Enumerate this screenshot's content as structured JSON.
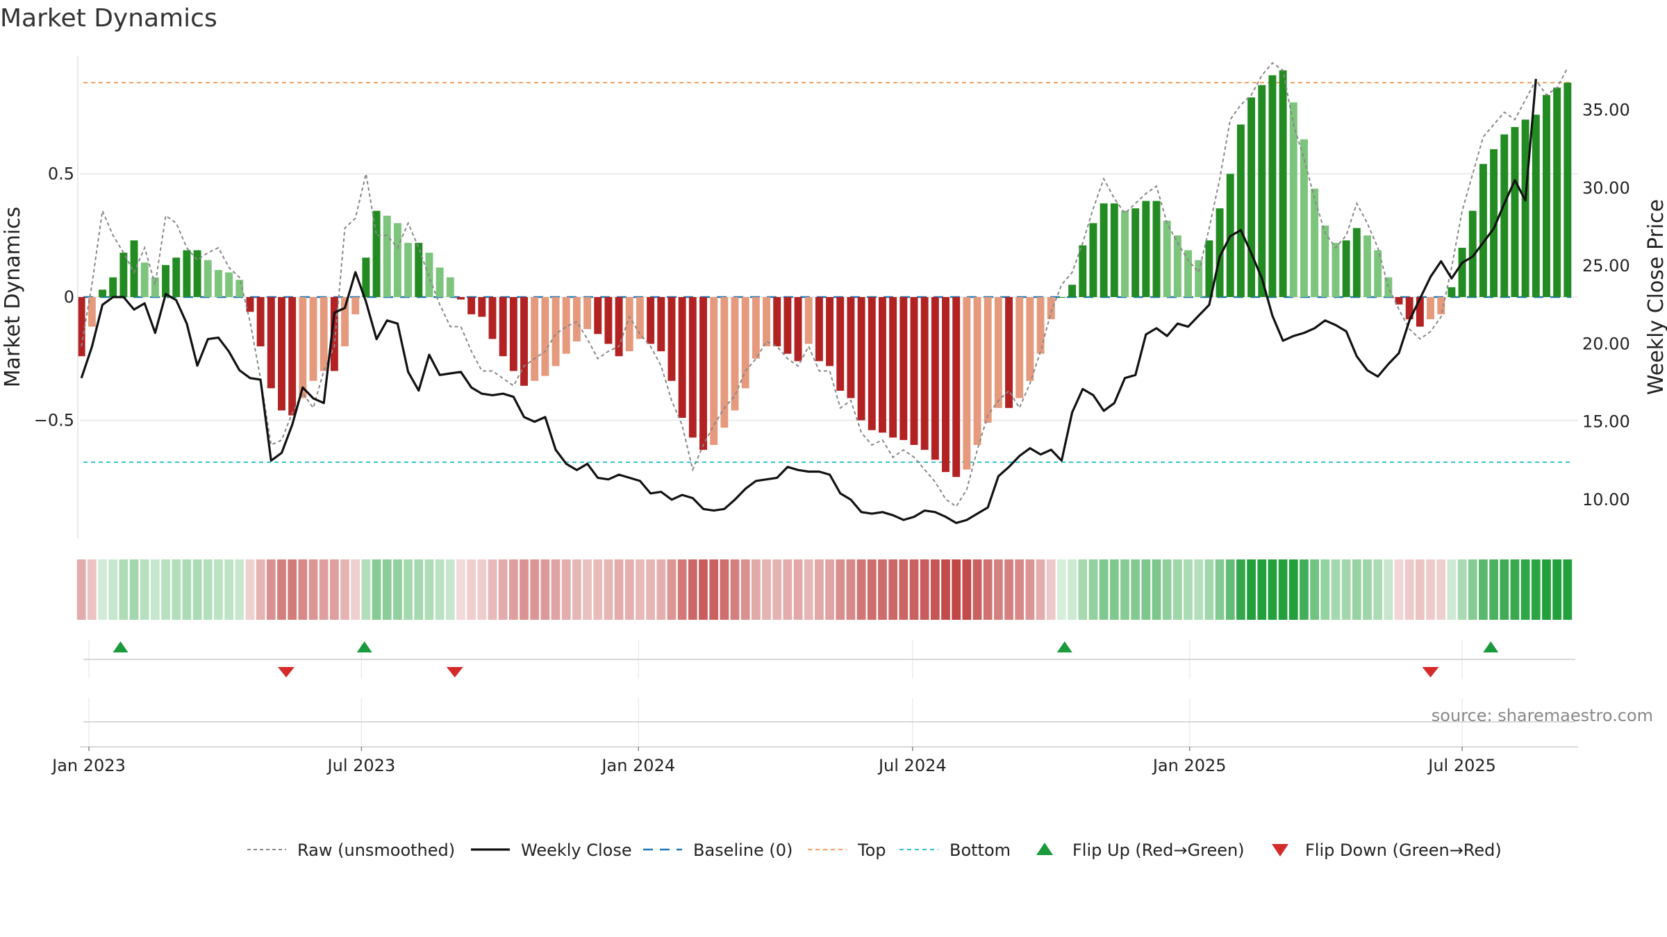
{
  "title": "Market Dynamics",
  "source": "source: sharemaestro.com",
  "colors": {
    "dark_green": "#228b22",
    "light_green": "#7dc47d",
    "dark_red": "#b22222",
    "light_red": "#e59a7d",
    "close_line": "#111111",
    "raw_line": "#888888",
    "baseline": "#1f77b4",
    "top_line": "#f4a46a",
    "bottom_line": "#3cc6d0",
    "flip_up": "#1a9a3c",
    "flip_down": "#d42a2a"
  },
  "chart_data": {
    "type": "bar",
    "title": "Market Dynamics",
    "ylabel_left": "Market Dynamics",
    "ylabel_right": "Weekly Close Price",
    "y_left_range": [
      -0.98,
      0.98
    ],
    "y_right_range": [
      7.5,
      38.5
    ],
    "y_left_ticks": [
      {
        "value": 0.5,
        "label": "0.5"
      },
      {
        "value": 0,
        "label": "0"
      },
      {
        "value": -0.5,
        "label": "−0.5"
      }
    ],
    "y_right_ticks": [
      {
        "value": 35,
        "label": "35.00"
      },
      {
        "value": 30,
        "label": "30.00"
      },
      {
        "value": 25,
        "label": "25.00"
      },
      {
        "value": 20,
        "label": "20.00"
      },
      {
        "value": 15,
        "label": "15.00"
      },
      {
        "value": 10,
        "label": "10.00"
      }
    ],
    "x_range": [
      "2022-12-26",
      "2025-09-16"
    ],
    "x_ticks": [
      {
        "date": "2023-01-01",
        "label": "Jan 2023"
      },
      {
        "date": "2023-07-01",
        "label": "Jul 2023"
      },
      {
        "date": "2024-01-01",
        "label": "Jan 2024"
      },
      {
        "date": "2024-07-01",
        "label": "Jul 2024"
      },
      {
        "date": "2025-01-01",
        "label": "Jan 2025"
      },
      {
        "date": "2025-07-01",
        "label": "Jul 2025"
      }
    ],
    "start_date": "2022-12-27",
    "week_days": 7,
    "top": 0.87,
    "bottom": -0.67,
    "baseline": 0,
    "series": [
      {
        "name": "Market Dynamics",
        "values": [
          -0.24,
          -0.12,
          0.03,
          0.08,
          0.18,
          0.23,
          0.14,
          0.08,
          0.13,
          0.16,
          0.19,
          0.19,
          0.15,
          0.11,
          0.1,
          0.07,
          -0.06,
          -0.2,
          -0.37,
          -0.46,
          -0.48,
          -0.41,
          -0.34,
          -0.3,
          -0.3,
          -0.2,
          -0.07,
          0.16,
          0.35,
          0.33,
          0.3,
          0.22,
          0.22,
          0.18,
          0.12,
          0.08,
          -0.01,
          -0.07,
          -0.08,
          -0.17,
          -0.24,
          -0.3,
          -0.36,
          -0.34,
          -0.32,
          -0.28,
          -0.23,
          -0.18,
          -0.13,
          -0.15,
          -0.19,
          -0.24,
          -0.22,
          -0.17,
          -0.19,
          -0.22,
          -0.34,
          -0.49,
          -0.57,
          -0.62,
          -0.6,
          -0.53,
          -0.46,
          -0.37,
          -0.25,
          -0.2,
          -0.2,
          -0.23,
          -0.26,
          -0.19,
          -0.26,
          -0.28,
          -0.38,
          -0.41,
          -0.5,
          -0.54,
          -0.55,
          -0.57,
          -0.58,
          -0.6,
          -0.62,
          -0.66,
          -0.71,
          -0.73,
          -0.7,
          -0.6,
          -0.51,
          -0.45,
          -0.45,
          -0.41,
          -0.34,
          -0.23,
          -0.09,
          0,
          0.05,
          0.21,
          0.3,
          0.38,
          0.38,
          0.35,
          0.36,
          0.39,
          0.39,
          0.31,
          0.25,
          0.19,
          0.15,
          0.23,
          0.36,
          0.5,
          0.7,
          0.81,
          0.86,
          0.9,
          0.92,
          0.79,
          0.64,
          0.44,
          0.29,
          0.22,
          0.23,
          0.28,
          0.25,
          0.19,
          0.08,
          -0.03,
          -0.09,
          -0.12,
          -0.09,
          -0.07,
          0.04,
          0.2,
          0.35,
          0.54,
          0.6,
          0.66,
          0.69,
          0.72,
          0.74,
          0.82,
          0.85,
          0.87
        ]
      },
      {
        "name": "Weekly Close",
        "values": [
          17.8,
          19.8,
          22.5,
          23,
          23,
          22.2,
          22.6,
          20.7,
          23.2,
          22.8,
          21.3,
          18.6,
          20.3,
          20.4,
          19.5,
          18.3,
          17.8,
          17.7,
          12.5,
          13,
          14.8,
          17.2,
          16.5,
          16.2,
          22,
          22.3,
          24.6,
          22.7,
          20.3,
          21.5,
          21.3,
          18.2,
          17,
          19.3,
          18,
          18.1,
          18.2,
          17.2,
          16.8,
          16.7,
          16.8,
          16.6,
          15.3,
          15,
          15.3,
          13.2,
          12.3,
          11.9,
          12.3,
          11.4,
          11.3,
          11.6,
          11.4,
          11.2,
          10.4,
          10.5,
          10,
          10.3,
          10.1,
          9.4,
          9.3,
          9.4,
          10,
          10.7,
          11.2,
          11.3,
          11.4,
          12.1,
          11.9,
          11.8,
          11.8,
          11.6,
          10.4,
          10,
          9.2,
          9.1,
          9.2,
          9,
          8.7,
          8.9,
          9.3,
          9.2,
          8.9,
          8.5,
          8.7,
          9.1,
          9.5,
          11.5,
          12.1,
          12.8,
          13.3,
          12.9,
          13.2,
          12.5,
          15.6,
          17.1,
          16.7,
          15.7,
          16.2,
          17.8,
          18,
          20.6,
          21,
          20.5,
          21.3,
          21.1,
          21.8,
          22.5,
          25.6,
          26.9,
          27.3,
          25.8,
          24.2,
          21.8,
          20.2,
          20.5,
          20.7,
          21,
          21.5,
          21.2,
          20.8,
          19.2,
          18.3,
          17.9,
          18.7,
          19.4,
          21.5,
          22.9,
          24.3,
          25.3,
          24.2,
          25.2,
          25.6,
          26.5,
          27.4,
          29,
          30.5,
          29.2,
          37
        ],
        "line_only": true
      },
      {
        "name": "Raw (unsmoothed)",
        "values": [
          -0.2,
          0.05,
          0.35,
          0.25,
          0.18,
          0.1,
          0.2,
          0.05,
          0.33,
          0.3,
          0.2,
          0.15,
          0.18,
          0.2,
          0.12,
          0.08,
          -0.1,
          -0.33,
          -0.6,
          -0.58,
          -0.47,
          -0.39,
          -0.45,
          -0.3,
          -0.2,
          0.28,
          0.32,
          0.5,
          0.25,
          0.25,
          0.2,
          0.3,
          0.2,
          0.08,
          -0.03,
          -0.12,
          -0.12,
          -0.22,
          -0.3,
          -0.3,
          -0.33,
          -0.36,
          -0.28,
          -0.25,
          -0.22,
          -0.15,
          -0.12,
          -0.1,
          -0.17,
          -0.25,
          -0.22,
          -0.2,
          -0.08,
          -0.15,
          -0.2,
          -0.28,
          -0.42,
          -0.52,
          -0.7,
          -0.6,
          -0.52,
          -0.45,
          -0.4,
          -0.3,
          -0.25,
          -0.18,
          -0.2,
          -0.25,
          -0.28,
          -0.2,
          -0.3,
          -0.3,
          -0.45,
          -0.42,
          -0.55,
          -0.6,
          -0.58,
          -0.65,
          -0.62,
          -0.65,
          -0.7,
          -0.75,
          -0.82,
          -0.85,
          -0.78,
          -0.62,
          -0.48,
          -0.42,
          -0.38,
          -0.45,
          -0.35,
          -0.22,
          -0.06,
          0.05,
          0.1,
          0.22,
          0.36,
          0.48,
          0.4,
          0.34,
          0.38,
          0.42,
          0.45,
          0.3,
          0.22,
          0.15,
          0.1,
          0.28,
          0.48,
          0.72,
          0.78,
          0.82,
          0.9,
          0.95,
          0.92,
          0.7,
          0.56,
          0.4,
          0.26,
          0.2,
          0.25,
          0.38,
          0.3,
          0.2,
          0.04,
          -0.05,
          -0.13,
          -0.17,
          -0.14,
          -0.08,
          0.12,
          0.35,
          0.5,
          0.65,
          0.7,
          0.75,
          0.72,
          0.8,
          0.88,
          0.82,
          0.85,
          0.93
        ],
        "line_only": true
      }
    ],
    "flips": {
      "up_dates": [
        "2023-01-22",
        "2023-07-03",
        "2024-10-10",
        "2025-07-20"
      ],
      "down_dates": [
        "2023-05-12",
        "2023-09-01",
        "2025-06-10"
      ]
    },
    "legend": {
      "placement": "bottom-center",
      "entries": [
        "Raw (unsmoothed)",
        "Weekly Close",
        "Baseline (0)",
        "Top",
        "Bottom",
        "Flip Up (Red→Green)",
        "Flip Down (Green→Red)"
      ]
    },
    "grid": true
  }
}
